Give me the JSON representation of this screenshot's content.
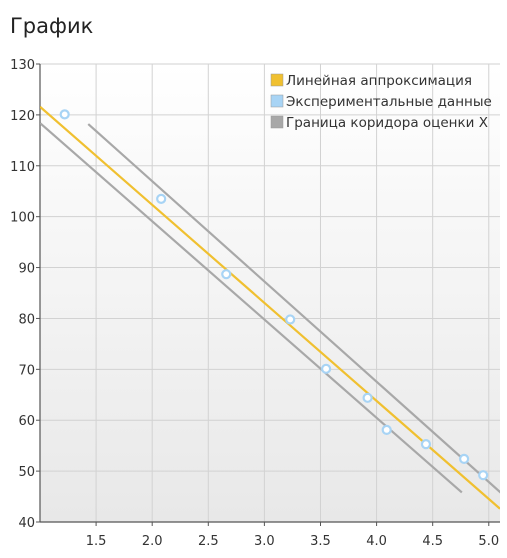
{
  "chart_title": "График",
  "colors": {
    "fit_line": "#f0c030",
    "data_points": "#a8d4f5",
    "bounds": "#a8a8a8",
    "axis": "#555555",
    "grid": "#d2d2d2"
  },
  "chart_data": {
    "type": "scatter",
    "title": "График",
    "xlabel": "",
    "ylabel": "",
    "xlim": [
      1.0,
      5.1
    ],
    "ylim": [
      40,
      130
    ],
    "grid": true,
    "legend_position": "top-right",
    "x_ticks": [
      "1.5",
      "2.0",
      "2.5",
      "3.0",
      "3.5",
      "4.0",
      "4.5",
      "5.0"
    ],
    "y_ticks": [
      "40",
      "50",
      "60",
      "70",
      "80",
      "90",
      "100",
      "110",
      "120",
      "130"
    ],
    "legend": [
      "Линейная аппроксимация",
      "Экспериментальные данные",
      "Граница коридора оценки Х"
    ],
    "series": [
      {
        "name": "Линейная аппроксимация",
        "kind": "line",
        "x": [
          1.0,
          5.1
        ],
        "y": [
          121.6,
          42.6
        ]
      },
      {
        "name": "Экспериментальные данные",
        "kind": "points",
        "x": [
          1.22,
          2.08,
          2.66,
          3.23,
          3.55,
          3.92,
          4.09,
          4.44,
          4.78,
          4.95
        ],
        "y": [
          120.1,
          103.5,
          88.7,
          79.8,
          70.1,
          64.4,
          58.1,
          55.3,
          52.4,
          49.2
        ]
      },
      {
        "name": "Граница коридора оценки Х",
        "kind": "line",
        "x": [
          1.43,
          5.11
        ],
        "y": [
          118.2,
          45.7
        ]
      },
      {
        "name": "Граница коридора оценки Х",
        "kind": "line",
        "x": [
          1.0,
          4.76
        ],
        "y": [
          118.4,
          45.8
        ]
      }
    ]
  }
}
